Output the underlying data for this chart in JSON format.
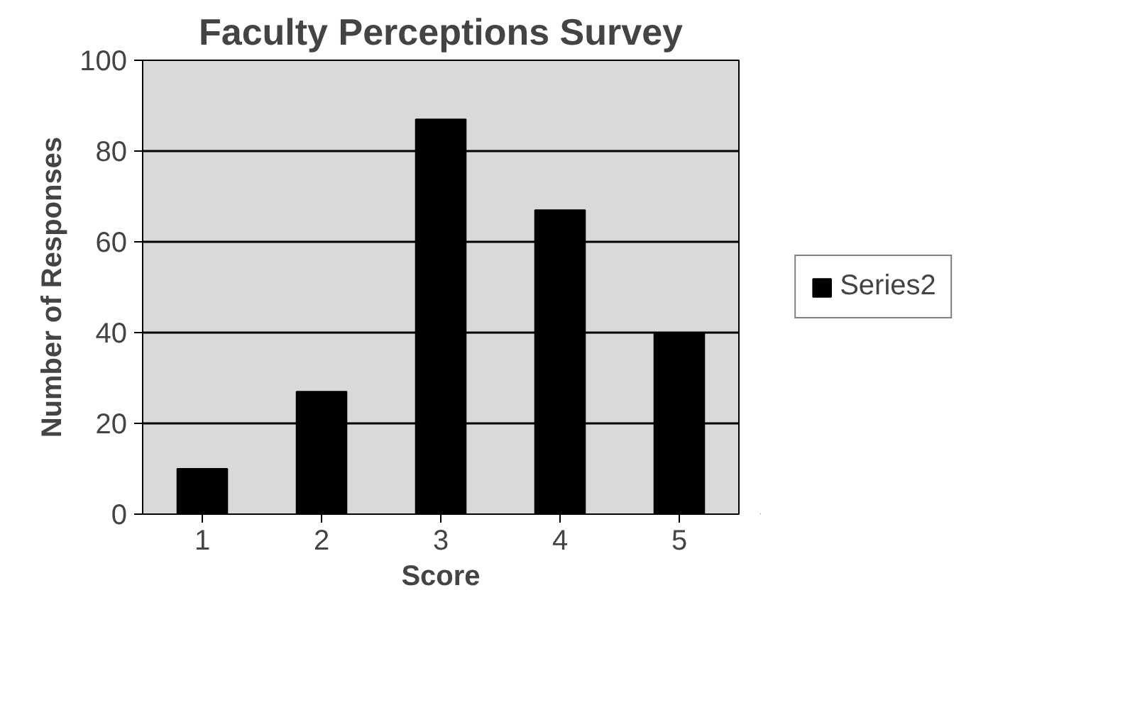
{
  "chart_data": {
    "type": "bar",
    "title": "Faculty Perceptions Survey",
    "xlabel": "Score",
    "ylabel": "Number of Responses",
    "categories": [
      "1",
      "2",
      "3",
      "4",
      "5"
    ],
    "series": [
      {
        "name": "Series2",
        "color": "#000000",
        "values": [
          10,
          27,
          87,
          67,
          40
        ]
      }
    ],
    "ylim": [
      0,
      100
    ],
    "yticks": [
      0,
      20,
      40,
      60,
      80,
      100
    ],
    "grid": "y",
    "legend": "right"
  }
}
